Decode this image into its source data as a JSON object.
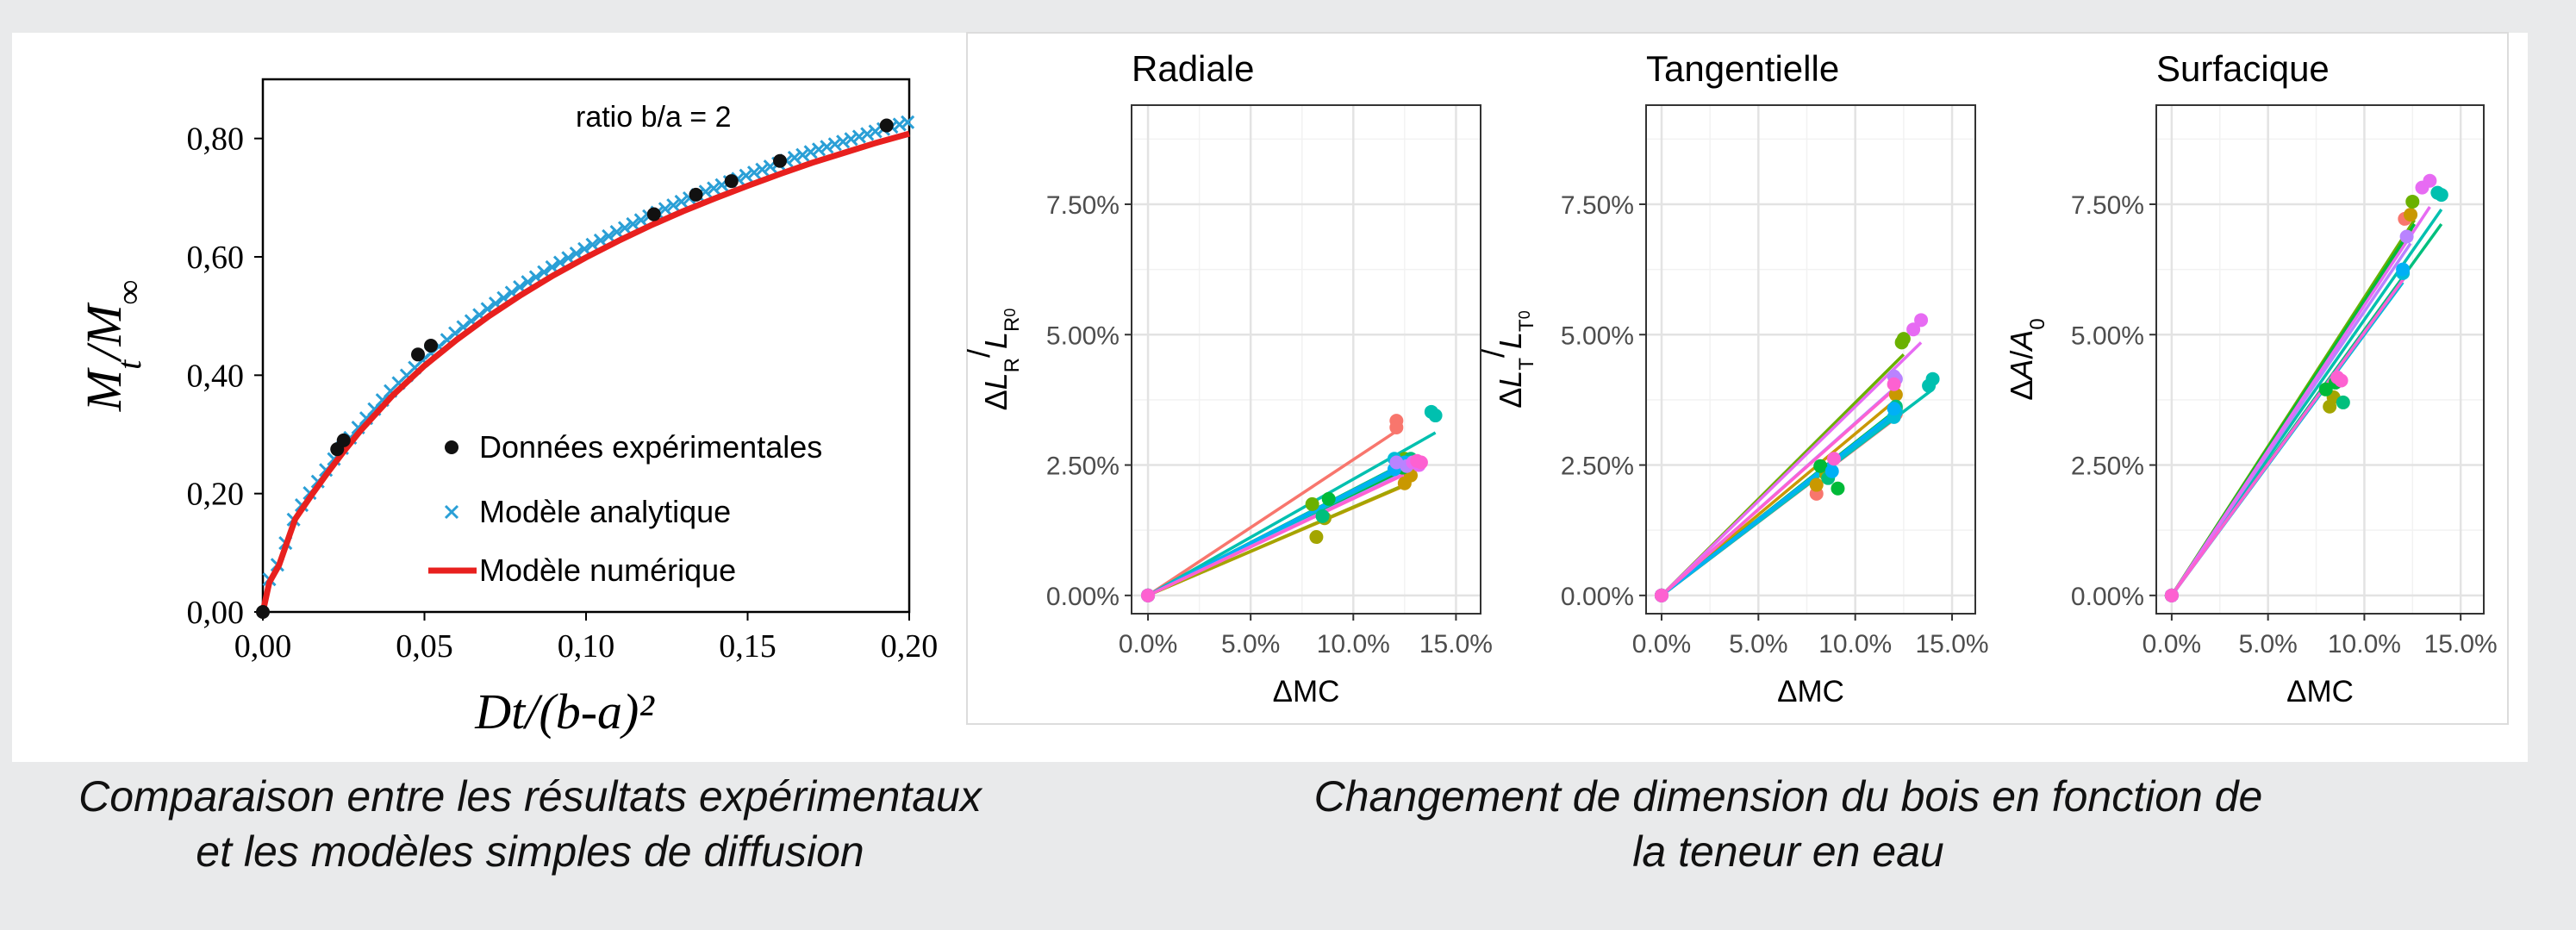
{
  "colors": {
    "page_background": "#e9eaeb",
    "panel_background": "#ffffff",
    "experimental": "#111111",
    "analytical": "#2a9fd6",
    "numerical": "#e8201e",
    "sample_palette": [
      "#f8766d",
      "#e58700",
      "#c99800",
      "#a3a500",
      "#6bb100",
      "#00ba38",
      "#00bf7d",
      "#00c0af",
      "#00bcd8",
      "#00b0f6",
      "#619cff",
      "#b983ff",
      "#e76bf3",
      "#fd61d1",
      "#ff67a4"
    ]
  },
  "chart_data": [
    {
      "type": "scatter",
      "annotation": "ratio b/a = 2",
      "xlabel": "Dt/(b-a)²",
      "ylabel_main": "M",
      "ylabel_sub1": "t",
      "ylabel_mid": "/M",
      "ylabel_sub2": "∞",
      "xlim": [
        0,
        0.2
      ],
      "ylim": [
        0,
        0.9
      ],
      "x_ticks": [
        "0,00",
        "0,05",
        "0,10",
        "0,15",
        "0,20"
      ],
      "x_tick_values": [
        0,
        0.05,
        0.1,
        0.15,
        0.2
      ],
      "y_ticks": [
        "0,00",
        "0,20",
        "0,40",
        "0,60",
        "0,80"
      ],
      "y_tick_values": [
        0,
        0.2,
        0.4,
        0.6,
        0.8
      ],
      "legend_position": "bottom-right",
      "series": [
        {
          "name": "Données expérimentales",
          "marker": "dot",
          "points": [
            [
              0.0,
              0.0
            ],
            [
              0.023,
              0.275
            ],
            [
              0.025,
              0.29
            ],
            [
              0.048,
              0.435
            ],
            [
              0.052,
              0.45
            ],
            [
              0.121,
              0.672
            ],
            [
              0.134,
              0.705
            ],
            [
              0.145,
              0.728
            ],
            [
              0.16,
              0.762
            ],
            [
              0.193,
              0.822
            ]
          ]
        },
        {
          "name": "Modèle analytique",
          "marker": "cross",
          "x_start": 0.002,
          "x_end": 0.2,
          "x_step": 0.0025
        },
        {
          "name": "Modèle numérique",
          "marker": "line",
          "x": [
            0,
            0.002,
            0.005,
            0.01,
            0.015,
            0.02,
            0.025,
            0.03,
            0.04,
            0.05,
            0.06,
            0.07,
            0.08,
            0.09,
            0.1,
            0.11,
            0.12,
            0.13,
            0.14,
            0.15,
            0.16,
            0.17,
            0.18,
            0.19,
            0.2
          ],
          "y": [
            0,
            0.05,
            0.079,
            0.157,
            0.197,
            0.235,
            0.271,
            0.305,
            0.365,
            0.416,
            0.46,
            0.5,
            0.536,
            0.569,
            0.599,
            0.627,
            0.653,
            0.677,
            0.699,
            0.72,
            0.74,
            0.759,
            0.776,
            0.793,
            0.808
          ]
        }
      ]
    },
    {
      "type": "scatter",
      "title": "Radiale",
      "xlabel": "ΔMC",
      "ylabel": "ΔL_R/L_R0",
      "xlim": [
        -0.008,
        0.162
      ],
      "ylim": [
        -0.0035,
        0.094
      ],
      "x_ticks": [
        "0.0%",
        "5.0%",
        "10.0%",
        "15.0%"
      ],
      "x_tick_values": [
        0,
        0.05,
        0.1,
        0.15
      ],
      "y_ticks": [
        "0.00%",
        "2.50%",
        "5.00%",
        "7.50%"
      ],
      "y_tick_values": [
        0,
        0.025,
        0.05,
        0.075
      ],
      "series": [
        {
          "points": [
            [
              0,
              0
            ],
            [
              0.121,
              0.0335
            ],
            [
              0.121,
              0.0322
            ]
          ],
          "line_end": [
            0.121,
            0.0315
          ]
        },
        {
          "points": [
            [
              0,
              0
            ],
            [
              0.125,
              0.0215
            ],
            [
              0.128,
              0.023
            ]
          ],
          "line_end": [
            0.126,
            0.0212
          ]
        },
        {
          "points": [
            [
              0,
              0
            ],
            [
              0.082,
              0.0112
            ],
            [
              0.086,
              0.0148
            ]
          ],
          "line_end": [
            0.125,
            0.0212
          ]
        },
        {
          "points": [
            [
              0,
              0
            ],
            [
              0.08,
              0.0175
            ],
            [
              0.125,
              0.0262
            ]
          ],
          "line_end": [
            0.125,
            0.0245
          ]
        },
        {
          "points": [
            [
              0,
              0
            ],
            [
              0.088,
              0.0185
            ],
            [
              0.124,
              0.0245
            ]
          ],
          "line_end": [
            0.126,
            0.0242
          ]
        },
        {
          "points": [
            [
              0,
              0
            ],
            [
              0.085,
              0.0152
            ],
            [
              0.128,
              0.0262
            ]
          ],
          "line_end": [
            0.128,
            0.026
          ]
        },
        {
          "points": [
            [
              0,
              0
            ],
            [
              0.138,
              0.0352
            ],
            [
              0.14,
              0.0345
            ]
          ],
          "line_end": [
            0.14,
            0.0312
          ]
        },
        {
          "points": [
            [
              0,
              0
            ],
            [
              0.12,
              0.0262
            ],
            [
              0.128,
              0.0255
            ]
          ],
          "line_end": [
            0.127,
            0.025
          ]
        },
        {
          "points": [
            [
              0,
              0
            ],
            [
              0.125,
              0.0255
            ],
            [
              0.12,
              0.0242
            ]
          ],
          "line_end": [
            0.124,
            0.025
          ]
        },
        {
          "points": [
            [
              0,
              0
            ],
            [
              0.121,
              0.0255
            ],
            [
              0.126,
              0.0248
            ]
          ],
          "line_end": [
            0.125,
            0.0235
          ]
        },
        {
          "points": [
            [
              0,
              0
            ],
            [
              0.129,
              0.0255
            ],
            [
              0.132,
              0.025
            ]
          ],
          "line_end": [
            0.134,
            0.025
          ]
        },
        {
          "points": [
            [
              0,
              0
            ],
            [
              0.131,
              0.0258
            ],
            [
              0.133,
              0.0255
            ]
          ],
          "line_end": [
            0.132,
            0.0245
          ]
        }
      ]
    },
    {
      "type": "scatter",
      "title": "Tangentielle",
      "xlabel": "ΔMC",
      "ylabel": "ΔL_T/L_T0",
      "xlim": [
        -0.008,
        0.162
      ],
      "ylim": [
        -0.0035,
        0.094
      ],
      "x_ticks": [
        "0.0%",
        "5.0%",
        "10.0%",
        "15.0%"
      ],
      "x_tick_values": [
        0,
        0.05,
        0.1,
        0.15
      ],
      "y_ticks": [
        "0.00%",
        "2.50%",
        "5.00%",
        "7.50%"
      ],
      "y_tick_values": [
        0,
        0.025,
        0.05,
        0.075
      ],
      "series": [
        {
          "points": [
            [
              0,
              0
            ],
            [
              0.08,
              0.0195
            ],
            [
              0.121,
              0.0348
            ]
          ],
          "line_end": [
            0.121,
            0.034
          ]
        },
        {
          "points": [
            [
              0,
              0
            ],
            [
              0.08,
              0.0212
            ],
            [
              0.121,
              0.0385
            ]
          ],
          "line_end": [
            0.121,
            0.0375
          ]
        },
        {
          "points": [
            [
              0,
              0
            ],
            [
              0.085,
              0.0232
            ],
            [
              0.121,
              0.0358
            ]
          ],
          "line_end": [
            0.122,
            0.0348
          ]
        },
        {
          "points": [
            [
              0,
              0
            ],
            [
              0.125,
              0.0492
            ],
            [
              0.124,
              0.0485
            ]
          ],
          "line_end": [
            0.125,
            0.0462
          ]
        },
        {
          "points": [
            [
              0,
              0
            ],
            [
              0.091,
              0.0205
            ],
            [
              0.082,
              0.0248
            ]
          ],
          "line_end": [
            0.12,
            0.0352
          ]
        },
        {
          "points": [
            [
              0,
              0
            ],
            [
              0.086,
              0.0225
            ],
            [
              0.121,
              0.0362
            ]
          ],
          "line_end": [
            0.121,
            0.0352
          ]
        },
        {
          "points": [
            [
              0,
              0
            ],
            [
              0.138,
              0.0402
            ],
            [
              0.14,
              0.0415
            ]
          ],
          "line_end": [
            0.14,
            0.0395
          ]
        },
        {
          "points": [
            [
              0,
              0
            ],
            [
              0.12,
              0.0342
            ],
            [
              0.121,
              0.0352
            ]
          ],
          "line_end": [
            0.121,
            0.0345
          ]
        },
        {
          "points": [
            [
              0,
              0
            ],
            [
              0.088,
              0.0238
            ],
            [
              0.12,
              0.0358
            ]
          ],
          "line_end": [
            0.12,
            0.035
          ]
        },
        {
          "points": [
            [
              0,
              0
            ],
            [
              0.12,
              0.042
            ],
            [
              0.121,
              0.0415
            ]
          ],
          "line_end": [
            0.121,
            0.04
          ]
        },
        {
          "points": [
            [
              0,
              0
            ],
            [
              0.13,
              0.051
            ],
            [
              0.134,
              0.0528
            ]
          ],
          "line_end": [
            0.134,
            0.0485
          ]
        },
        {
          "points": [
            [
              0,
              0
            ],
            [
              0.089,
              0.0262
            ],
            [
              0.12,
              0.0405
            ]
          ],
          "line_end": [
            0.121,
            0.0398
          ]
        }
      ]
    },
    {
      "type": "scatter",
      "title": "Surfacique",
      "xlabel": "ΔMC",
      "ylabel": "ΔA/A_0",
      "xlim": [
        -0.008,
        0.162
      ],
      "ylim": [
        -0.0035,
        0.094
      ],
      "x_ticks": [
        "0.0%",
        "5.0%",
        "10.0%",
        "15.0%"
      ],
      "x_tick_values": [
        0,
        0.05,
        0.1,
        0.15
      ],
      "y_ticks": [
        "0.00%",
        "2.50%",
        "5.00%",
        "7.50%"
      ],
      "y_tick_values": [
        0,
        0.025,
        0.05,
        0.075
      ],
      "series": [
        {
          "points": [
            [
              0,
              0
            ],
            [
              0.121,
              0.0722
            ]
          ],
          "line_end": [
            0.121,
            0.0688
          ]
        },
        {
          "points": [
            [
              0,
              0
            ],
            [
              0.124,
              0.073
            ]
          ],
          "line_end": [
            0.124,
            0.0698
          ]
        },
        {
          "points": [
            [
              0,
              0
            ],
            [
              0.082,
              0.0362
            ],
            [
              0.084,
              0.038
            ]
          ],
          "line_end": [
            0.125,
            0.0702
          ]
        },
        {
          "points": [
            [
              0,
              0
            ],
            [
              0.125,
              0.0755
            ]
          ],
          "line_end": [
            0.126,
            0.072
          ]
        },
        {
          "points": [
            [
              0,
              0
            ],
            [
              0.08,
              0.0395
            ],
            [
              0.085,
              0.0408
            ]
          ],
          "line_end": [
            0.126,
            0.0712
          ]
        },
        {
          "points": [
            [
              0,
              0
            ],
            [
              0.089,
              0.037
            ]
          ],
          "line_end": [
            0.14,
            0.0712
          ]
        },
        {
          "points": [
            [
              0,
              0
            ],
            [
              0.138,
              0.0772
            ],
            [
              0.14,
              0.0768
            ]
          ],
          "line_end": [
            0.14,
            0.074
          ]
        },
        {
          "points": [
            [
              0,
              0
            ],
            [
              0.12,
              0.0618
            ]
          ],
          "line_end": [
            0.12,
            0.06
          ]
        },
        {
          "points": [
            [
              0,
              0
            ],
            [
              0.12,
              0.0625
            ]
          ],
          "line_end": [
            0.121,
            0.061
          ]
        },
        {
          "points": [
            [
              0,
              0
            ],
            [
              0.122,
              0.0688
            ]
          ],
          "line_end": [
            0.124,
            0.0675
          ]
        },
        {
          "points": [
            [
              0,
              0
            ],
            [
              0.13,
              0.0782
            ],
            [
              0.134,
              0.0795
            ]
          ],
          "line_end": [
            0.134,
            0.0745
          ]
        },
        {
          "points": [
            [
              0,
              0
            ],
            [
              0.086,
              0.0418
            ],
            [
              0.088,
              0.0412
            ]
          ],
          "line_end": [
            0.121,
            0.061
          ]
        }
      ]
    }
  ],
  "captions": {
    "left_line1": "Comparaison entre les résultats expérimentaux",
    "left_line2": "et les modèles simples de diffusion",
    "right_line1": "Changement de dimension du bois en fonction de",
    "right_line2": "la teneur en eau"
  }
}
